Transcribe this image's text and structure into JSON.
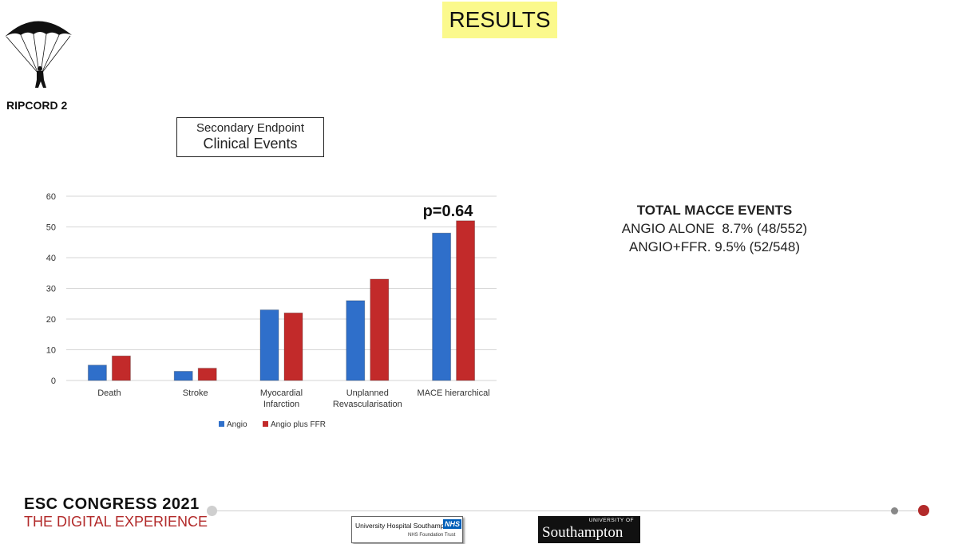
{
  "header": {
    "title": "RESULTS"
  },
  "logo": {
    "label": "RIPCORD 2",
    "icon": "parachute-icon"
  },
  "endpoint_box": {
    "line1": "Secondary Endpoint",
    "line2": "Clinical Events"
  },
  "annotation": {
    "p_value": "p=0.64"
  },
  "macce": {
    "heading": "TOTAL MACCE EVENTS",
    "line1": "ANGIO ALONE  8.7% (48/552)",
    "line2": "ANGIO+FFR. 9.5% (52/548)"
  },
  "chart_data": {
    "type": "bar",
    "categories": [
      [
        "Death"
      ],
      [
        "Stroke"
      ],
      [
        "Myocardial",
        "Infarction"
      ],
      [
        "Unplanned",
        "Revascularisation"
      ],
      [
        "MACE hierarchical"
      ]
    ],
    "series": [
      {
        "name": "Angio",
        "values": [
          5,
          3,
          23,
          26,
          48
        ],
        "color": "#2f6fca"
      },
      {
        "name": "Angio plus FFR",
        "values": [
          8,
          4,
          22,
          33,
          52
        ],
        "color": "#c22a2a"
      }
    ],
    "ylim": [
      0,
      60
    ],
    "yticks": [
      0,
      10,
      20,
      30,
      40,
      50,
      60
    ],
    "grid": true,
    "legend": "bottom"
  },
  "footer": {
    "congress_line1": "ESC CONGRESS 2021",
    "congress_line2": "THE DIGITAL EXPERIENCE",
    "uhs_name": "University Hospital Southampton",
    "uhs_badge": "NHS",
    "uhs_sub": "NHS Foundation Trust",
    "soton_top": "UNIVERSITY OF",
    "soton_main": "Southampton"
  },
  "colors": {
    "accent_red": "#b22a2a",
    "title_bg": "#fbf98c"
  }
}
